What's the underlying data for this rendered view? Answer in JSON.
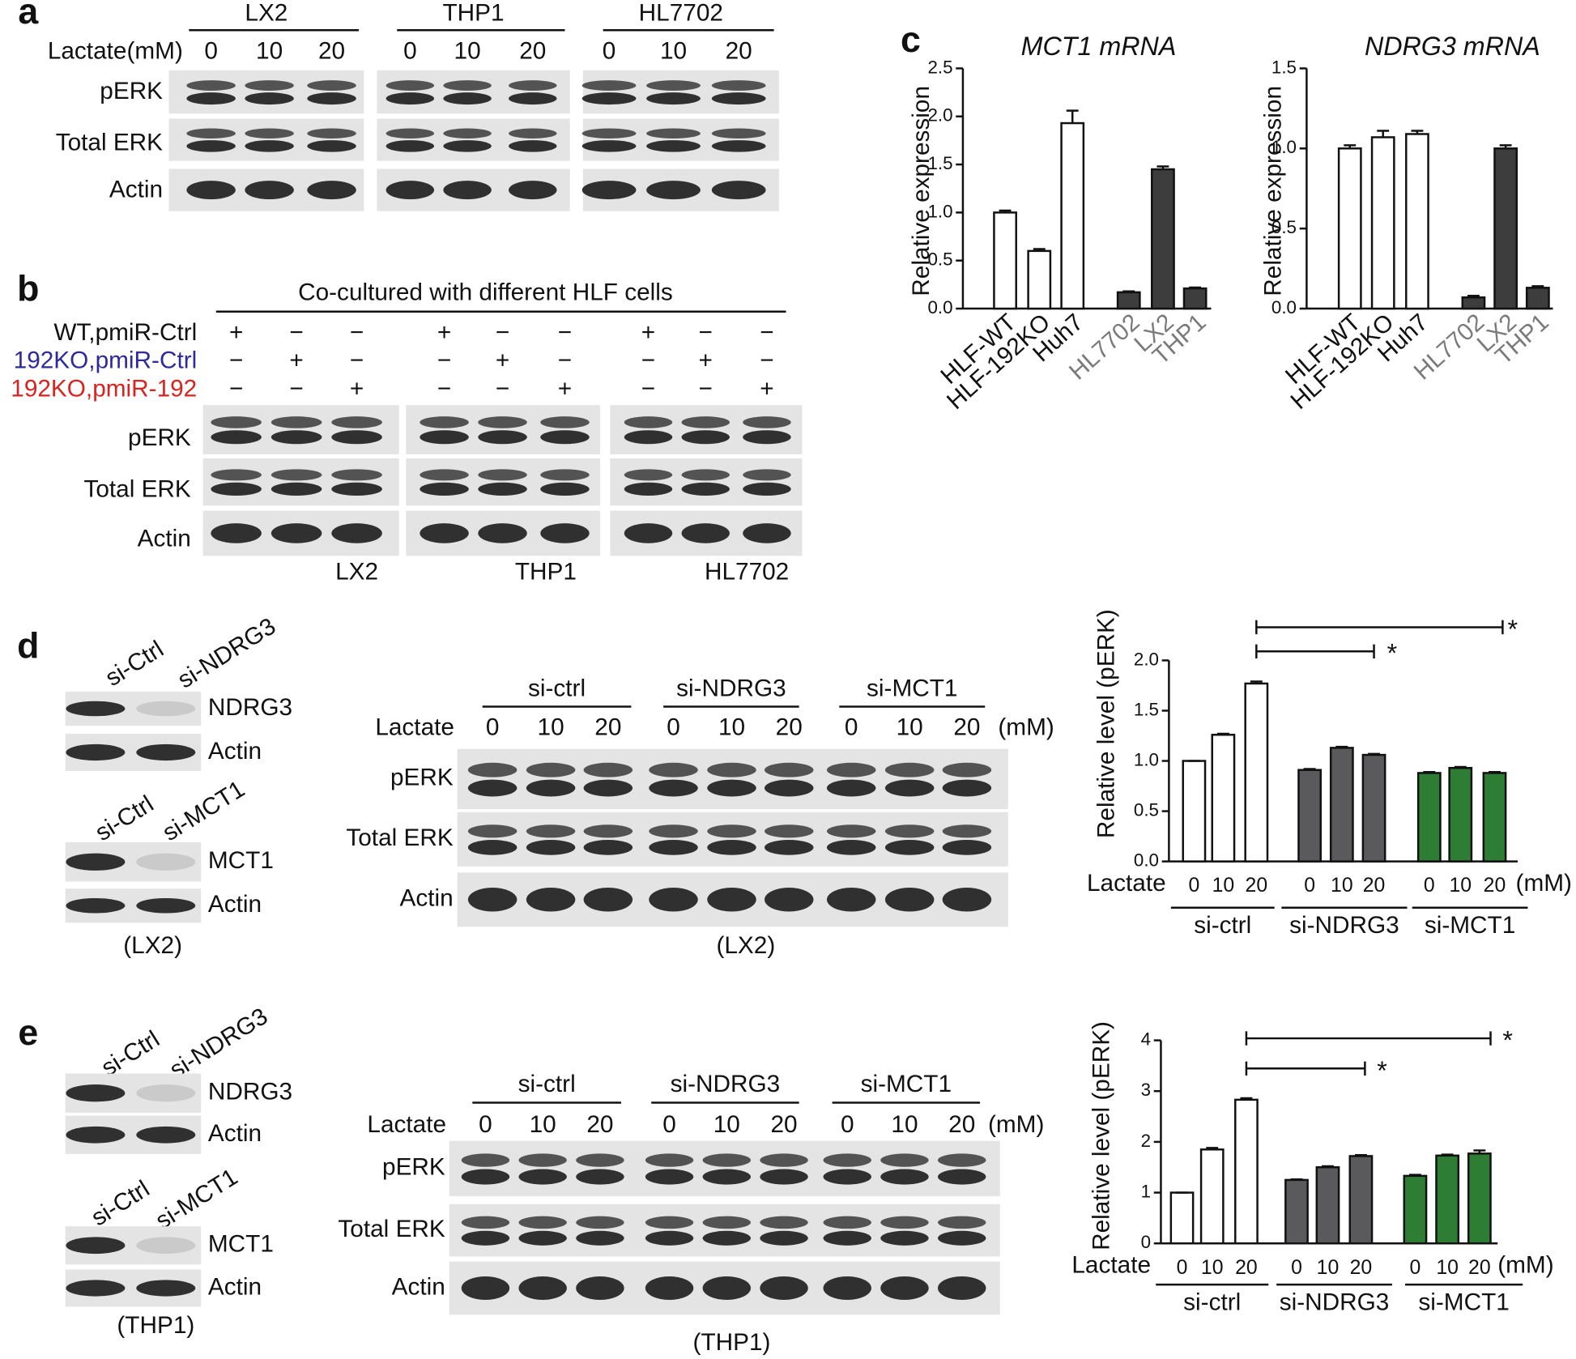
{
  "panels": {
    "a": {
      "letter": "a",
      "groups": [
        "LX2",
        "THP1",
        "HL7702"
      ],
      "treatment": "Lactate(mM)",
      "lanes": [
        "0",
        "10",
        "20"
      ],
      "rows": [
        "pERK",
        "Total ERK",
        "Actin"
      ]
    },
    "b": {
      "letter": "b",
      "header": "Co-cultured with different HLF cells",
      "conditions": [
        {
          "label": "WT,pmiR-Ctrl",
          "color": "#111111",
          "signs": [
            "+",
            "−",
            "−"
          ]
        },
        {
          "label": "192KO,pmiR-Ctrl",
          "color": "#2e2a9c",
          "signs": [
            "−",
            "+",
            "−"
          ]
        },
        {
          "label": "192KO,pmiR-192",
          "color": "#d8231f",
          "signs": [
            "−",
            "−",
            "+"
          ]
        }
      ],
      "rows": [
        "pERK",
        "Total ERK",
        "Actin"
      ],
      "groups": [
        "LX2",
        "THP1",
        "HL7702"
      ]
    },
    "d": {
      "letter": "d",
      "knockdown": [
        {
          "lanes": [
            "si-Ctrl",
            "si-NDRG3"
          ],
          "rows": [
            "NDRG3",
            "Actin"
          ]
        },
        {
          "lanes": [
            "si-Ctrl",
            "si-MCT1"
          ],
          "rows": [
            "MCT1",
            "Actin"
          ]
        }
      ],
      "knockdown_cell": "(LX2)",
      "groups": [
        "si-ctrl",
        "si-NDRG3",
        "si-MCT1"
      ],
      "treatment": "Lactate",
      "lanes": [
        "0",
        "10",
        "20"
      ],
      "unit": "(mM)",
      "rows": [
        "pERK",
        "Total ERK",
        "Actin"
      ],
      "cell": "(LX2)"
    },
    "e": {
      "letter": "e",
      "knockdown": [
        {
          "lanes": [
            "si-Ctrl",
            "si-NDRG3"
          ],
          "rows": [
            "NDRG3",
            "Actin"
          ]
        },
        {
          "lanes": [
            "si-Ctrl",
            "si-MCT1"
          ],
          "rows": [
            "MCT1",
            "Actin"
          ]
        }
      ],
      "knockdown_cell": "(THP1)",
      "groups": [
        "si-ctrl",
        "si-NDRG3",
        "si-MCT1"
      ],
      "treatment": "Lactate",
      "lanes": [
        "0",
        "10",
        "20"
      ],
      "unit": "(mM)",
      "rows": [
        "pERK",
        "Total ERK",
        "Actin"
      ],
      "cell": "(THP1)"
    }
  },
  "chart_data": [
    {
      "type": "bar",
      "panel": "c",
      "title": "MCT1 mRNA",
      "ylabel": "Relative expression",
      "categories": [
        "HLF-WT",
        "HLF-192KO",
        "Huh7",
        "HL7702",
        "LX2",
        "THP1"
      ],
      "category_colors": [
        "#111111",
        "#111111",
        "#111111",
        "#7a7a7a",
        "#7a7a7a",
        "#7a7a7a"
      ],
      "values": [
        1.0,
        0.6,
        1.93,
        0.17,
        1.45,
        0.21
      ],
      "errors": [
        0.02,
        0.02,
        0.13,
        0.01,
        0.03,
        0.01
      ],
      "colors": [
        "#ffffff",
        "#ffffff",
        "#ffffff",
        "#3d3d3d",
        "#3d3d3d",
        "#3d3d3d"
      ],
      "ylim": [
        0,
        2.5
      ],
      "yticks": [
        {
          "value": 0,
          "label": "0.0"
        },
        0.5,
        {
          "value": 1,
          "label": "1.0"
        },
        1.5,
        {
          "value": 2,
          "label": "2.0"
        },
        2.5
      ]
    },
    {
      "type": "bar",
      "title": "NDRG3 mRNA",
      "ylabel": "Relative expression",
      "categories": [
        "HLF-WT",
        "HLF-192KO",
        "Huh7",
        "HL7702",
        "LX2",
        "THP1"
      ],
      "category_colors": [
        "#111111",
        "#111111",
        "#111111",
        "#7a7a7a",
        "#7a7a7a",
        "#7a7a7a"
      ],
      "values": [
        1.0,
        1.07,
        1.09,
        0.07,
        1.0,
        0.13
      ],
      "errors": [
        0.02,
        0.04,
        0.02,
        0.01,
        0.02,
        0.01
      ],
      "colors": [
        "#ffffff",
        "#ffffff",
        "#ffffff",
        "#3d3d3d",
        "#3d3d3d",
        "#3d3d3d"
      ],
      "ylim": [
        0,
        1.5
      ],
      "yticks": [
        {
          "value": 0,
          "label": "0.0"
        },
        0.5,
        {
          "value": 1,
          "label": "1.0"
        },
        1.5
      ]
    },
    {
      "type": "grouped-bar",
      "ylabel": "Relative level (pERK)",
      "xlabel": "Lactate",
      "x_unit": "(mM)",
      "categories": [
        "0",
        "10",
        "20"
      ],
      "series": [
        {
          "name": "si-ctrl",
          "color": "#ffffff",
          "values": [
            1.0,
            1.26,
            1.77
          ],
          "errors": [
            0.0,
            0.01,
            0.02
          ]
        },
        {
          "name": "si-NDRG3",
          "color": "#5a5a5c",
          "values": [
            0.91,
            1.13,
            1.06
          ],
          "errors": [
            0.01,
            0.01,
            0.01
          ]
        },
        {
          "name": "si-MCT1",
          "color": "#2e7d34",
          "values": [
            0.88,
            0.93,
            0.88
          ],
          "errors": [
            0.01,
            0.01,
            0.01
          ]
        }
      ],
      "annotations": [
        "*",
        "*"
      ],
      "ylim": [
        0,
        2
      ],
      "yticks": [
        {
          "value": 0,
          "label": "0.0"
        },
        0.5,
        {
          "value": 1,
          "label": "1.0"
        },
        1.5,
        {
          "value": 2,
          "label": "2.0"
        }
      ]
    },
    {
      "type": "grouped-bar",
      "ylabel": "Relative level (pERK)",
      "xlabel": "Lactate",
      "x_unit": "(mM)",
      "categories": [
        "0",
        "10",
        "20"
      ],
      "series": [
        {
          "name": "si-ctrl",
          "color": "#ffffff",
          "values": [
            1.0,
            1.85,
            2.83
          ],
          "errors": [
            0.0,
            0.03,
            0.03
          ]
        },
        {
          "name": "si-NDRG3",
          "color": "#5a5a5c",
          "values": [
            1.25,
            1.5,
            1.72
          ],
          "errors": [
            0.01,
            0.02,
            0.02
          ]
        },
        {
          "name": "si-MCT1",
          "color": "#2e7d34",
          "values": [
            1.33,
            1.73,
            1.77
          ],
          "errors": [
            0.02,
            0.02,
            0.06
          ]
        }
      ],
      "annotations": [
        "*",
        "*"
      ],
      "ylim": [
        0,
        4
      ],
      "yticks": [
        0,
        1,
        2,
        3,
        4
      ]
    }
  ]
}
